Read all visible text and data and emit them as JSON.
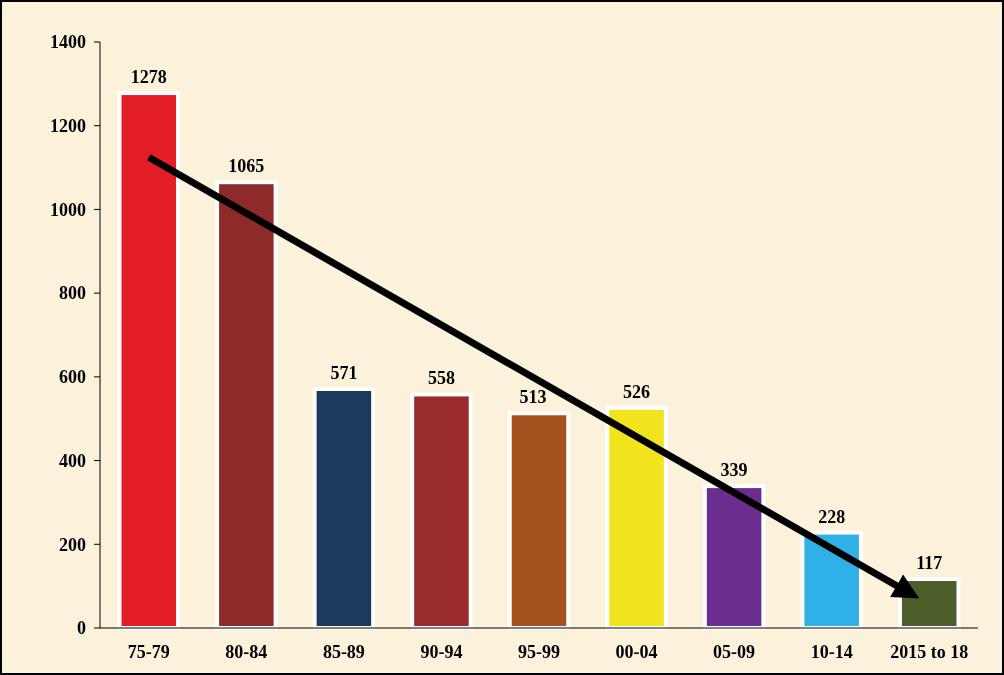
{
  "chart_data": {
    "type": "bar",
    "categories": [
      "75-79",
      "80-84",
      "85-89",
      "90-94",
      "95-99",
      "00-04",
      "05-09",
      "10-14",
      "2015 to 18"
    ],
    "values": [
      1278,
      1065,
      571,
      558,
      513,
      526,
      339,
      228,
      117
    ],
    "colors": [
      "#e41e26",
      "#8e2a2a",
      "#1c3a5e",
      "#9a2b2b",
      "#a5521e",
      "#f2e41c",
      "#6b2d8f",
      "#2fb0e6",
      "#4d5e2a"
    ],
    "ylim": [
      0,
      1400
    ],
    "yticks": [
      0,
      200,
      400,
      600,
      800,
      1000,
      1200,
      1400
    ],
    "data_labels": true
  }
}
